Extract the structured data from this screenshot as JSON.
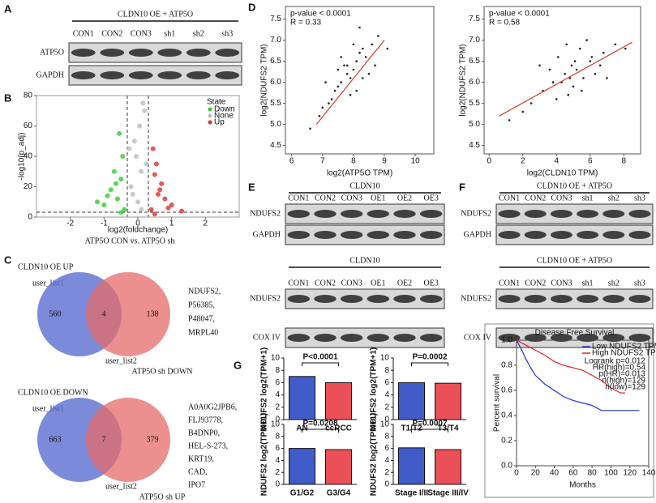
{
  "panel_labels": [
    "A",
    "B",
    "C",
    "D",
    "E",
    "F",
    "G"
  ],
  "blot_a": {
    "title": "CLDN10 OE + ATP5O",
    "lanes": [
      "CON1",
      "CON2",
      "CON3",
      "sh1",
      "sh2",
      "sh3"
    ],
    "rows": [
      "ATP5O",
      "GAPDH"
    ]
  },
  "volcano": {
    "xlabel": "log2(foldchange)",
    "ylabel": "-log10(p_adj)",
    "xlim": [
      -3,
      3
    ],
    "xticks": [
      -2,
      -1,
      0,
      1,
      2
    ],
    "ylim": [
      0,
      80
    ],
    "yticks": [
      0,
      20,
      40,
      60,
      80
    ],
    "legend_title": "State",
    "caption": "ATP5O CON vs. ATP5O sh",
    "series": [
      {
        "name": "Down",
        "color": "#33cc33",
        "x": [
          -0.4,
          -0.6,
          -0.5,
          -0.8,
          -0.45,
          -1.0,
          -0.7,
          -0.55,
          -0.9,
          -0.65,
          -1.2,
          -0.5
        ],
        "y": [
          5,
          12,
          25,
          18,
          40,
          8,
          30,
          55,
          14,
          22,
          10,
          3
        ]
      },
      {
        "name": "None",
        "color": "#bbbbbb",
        "x": [
          0,
          0.1,
          -0.1,
          0.2,
          -0.2,
          0.05,
          -0.05,
          0.15,
          -0.15,
          0.25,
          -0.25,
          0.1
        ],
        "y": [
          10,
          30,
          50,
          70,
          20,
          60,
          40,
          75,
          15,
          35,
          45,
          5
        ]
      },
      {
        "name": "Up",
        "color": "#e03030",
        "x": [
          0.4,
          0.6,
          0.5,
          0.8,
          0.45,
          1.0,
          0.7,
          0.55,
          0.9,
          0.65,
          1.3,
          0.5
        ],
        "y": [
          5,
          15,
          28,
          12,
          45,
          8,
          22,
          35,
          6,
          18,
          4,
          2
        ]
      }
    ]
  },
  "venn": [
    {
      "title": "CLDN10  OE UP",
      "set1": "user_list1",
      "set2": "user_list2",
      "only1": 560,
      "both": 4,
      "only2": 138,
      "set2_name": "ATP5O sh DOWN",
      "genes": [
        "NDUFS2,",
        "P56385,",
        "P48047,",
        "MRPL40"
      ]
    },
    {
      "title": "CLDN10  OE DOWN",
      "set1": "user_list1",
      "set2": "user_list2",
      "only1": 663,
      "both": 7,
      "only2": 379,
      "set2_name": "ATP5O sh UP",
      "genes": [
        "A0A0G2JPB6,",
        "FLJ93778,",
        "B4DNP0,",
        "HEL-S-273,",
        "KRT19,",
        "CAD,",
        "IPO7"
      ]
    }
  ],
  "scatter": [
    {
      "annotation": [
        "p-value < 0.0001",
        "R = 0.33"
      ],
      "xlabel": "log2(ATP5O TPM)",
      "ylabel": "log2(NDUFS2 TPM)",
      "xlim": [
        5.8,
        10.6
      ],
      "xticks": [
        6,
        7,
        8,
        9,
        10
      ],
      "ylim": [
        4.3,
        7.8
      ],
      "yticks": [
        4.5,
        {
          "value": 5,
          "label": "5.0"
        },
        5.5,
        {
          "value": 6,
          "label": "6.0"
        },
        6.5,
        {
          "value": 7,
          "label": "7.0"
        },
        7.5
      ],
      "x": [
        7.8,
        7.5,
        8.1,
        7.9,
        8.3,
        7.2,
        8.6,
        7.6,
        8.0,
        7.4,
        8.4,
        7.7,
        8.2,
        6.9,
        8.8,
        7.3,
        7.9,
        8.5,
        7.1,
        8.0,
        7.6,
        8.3,
        6.6,
        9.1,
        7.8,
        8.1,
        7.5,
        8.7,
        7.0,
        8.2
      ],
      "y": [
        6.2,
        5.9,
        6.5,
        6.1,
        6.8,
        5.5,
        6.9,
        6.0,
        6.3,
        5.8,
        6.6,
        6.4,
        6.7,
        5.2,
        7.1,
        5.6,
        5.7,
        6.2,
        6.0,
        6.9,
        6.6,
        6.1,
        4.9,
        6.8,
        6.4,
        5.8,
        6.3,
        6.4,
        5.4,
        7.3
      ],
      "fit_x": [
        6.8,
        9.0
      ],
      "fit_y": [
        5.0,
        7.0
      ]
    },
    {
      "annotation": [
        "p-value < 0.0001",
        "R = 0.58"
      ],
      "xlabel": "log2(CLDN10 TPM)",
      "ylabel": "log2(NDUFS2 TPM)",
      "xlim": [
        -0.3,
        9
      ],
      "xticks": [
        0,
        2,
        4,
        6,
        8
      ],
      "ylim": [
        4.3,
        7.8
      ],
      "yticks": [
        4.5,
        {
          "value": 5,
          "label": "5.0"
        },
        5.5,
        {
          "value": 6,
          "label": "6.0"
        },
        6.5,
        {
          "value": 7,
          "label": "7.0"
        },
        7.5
      ],
      "x": [
        4.5,
        5.2,
        3.8,
        6.0,
        4.9,
        5.6,
        3.2,
        6.8,
        4.1,
        5.0,
        2.5,
        7.5,
        5.4,
        4.7,
        6.3,
        3.6,
        5.8,
        4.3,
        6.6,
        1.2,
        5.1,
        4.0,
        7.0,
        3.0,
        5.5,
        4.6,
        6.1,
        2.0,
        8.1,
        4.8
      ],
      "y": [
        6.2,
        6.3,
        6.0,
        6.5,
        6.4,
        6.1,
        5.8,
        6.7,
        6.6,
        5.9,
        5.5,
        6.9,
        6.8,
        5.7,
        6.2,
        6.3,
        7.0,
        6.0,
        6.4,
        5.1,
        6.5,
        5.6,
        6.1,
        6.4,
        5.8,
        6.9,
        6.6,
        5.3,
        6.8,
        6.1
      ],
      "fit_x": [
        0.6,
        8.5
      ],
      "fit_y": [
        5.2,
        6.95
      ]
    }
  ],
  "blots_e": [
    {
      "title": "CLDN10",
      "lanes": [
        "CON1",
        "CON2",
        "CON3",
        "OE1",
        "OE2",
        "OE3"
      ],
      "rows": [
        "NDUFS2",
        "GAPDH"
      ]
    },
    {
      "title": "CLDN10",
      "lanes": [
        "CON1",
        "CON2",
        "CON3",
        "OE1",
        "OE2",
        "OE3"
      ],
      "rows": [
        "NDUFS2",
        "COX IV"
      ]
    }
  ],
  "blots_f": [
    {
      "title": "CLDN10 OE + ATP5O",
      "lanes": [
        "CON1",
        "CON2",
        "CON3",
        "sh1",
        "sh2",
        "sh3"
      ],
      "rows": [
        "NDUFS2",
        "GAPDH"
      ]
    },
    {
      "title": "CLDN10 OE + ATP5O",
      "lanes": [
        "CON1",
        "CON2",
        "CON3",
        "sh1",
        "sh2",
        "sh3"
      ],
      "rows": [
        "NDUFS2",
        "COX IV"
      ]
    }
  ],
  "bars": [
    {
      "ylabel": "NDUFS2 log2(TPM+1)",
      "p_label": "P<0.0001",
      "categories": [
        "AN",
        "ccRCC"
      ],
      "values": [
        7.0,
        6.0
      ],
      "colors": [
        "#1f3fbf",
        "#e8303a"
      ],
      "ylim": [
        0,
        10
      ],
      "yticks": [
        0,
        2,
        4,
        6,
        8,
        10
      ]
    },
    {
      "ylabel": "NDUFS2 log2(TPM+1)",
      "p_label": "P=0.0002",
      "categories": [
        "T1/T2",
        "T3/T4"
      ],
      "values": [
        6.0,
        5.9
      ],
      "colors": [
        "#1f3fbf",
        "#e8303a"
      ],
      "ylim": [
        0,
        10
      ],
      "yticks": [
        0,
        2,
        4,
        6,
        8,
        10
      ]
    },
    {
      "ylabel": "NDUFS2 log2(TPM+1)",
      "p_label": "P=0.0208",
      "categories": [
        "G1/G2",
        "G3/G4"
      ],
      "values": [
        6.0,
        5.8
      ],
      "colors": [
        "#1f3fbf",
        "#e8303a"
      ],
      "ylim": [
        0,
        10
      ],
      "yticks": [
        0,
        2,
        4,
        6,
        8,
        10
      ]
    },
    {
      "ylabel": "NDUFS2 log2(TPM+1)",
      "p_label": "P=0.0007",
      "categories": [
        "Stage I/II",
        "Stage III/IV"
      ],
      "values": [
        6.1,
        5.8
      ],
      "colors": [
        "#1f3fbf",
        "#e8303a"
      ],
      "ylim": [
        0,
        10
      ],
      "yticks": [
        0,
        2,
        4,
        6,
        8,
        10
      ]
    }
  ],
  "survival": {
    "title": "Disease Free Survival",
    "xlabel": "Months",
    "ylabel": "Percent survival",
    "xlim": [
      0,
      140
    ],
    "xticks": [
      0,
      20,
      40,
      60,
      80,
      100,
      120,
      140
    ],
    "ylim": [
      0,
      1
    ],
    "yticks": [
      {
        "value": 0,
        "label": "0.0"
      },
      0.2,
      0.4,
      0.6,
      0.8,
      {
        "value": 1,
        "label": "1.0"
      }
    ],
    "series": [
      {
        "name": "Low NDUFS2 TPM",
        "color": "#2030d0",
        "x": [
          0,
          5,
          10,
          15,
          20,
          30,
          40,
          50,
          60,
          70,
          80,
          90,
          100,
          130
        ],
        "y": [
          1,
          0.93,
          0.85,
          0.78,
          0.72,
          0.65,
          0.6,
          0.55,
          0.52,
          0.5,
          0.48,
          0.44,
          0.44,
          0.44
        ]
      },
      {
        "name": "High NDUFS2 TPM",
        "color": "#e02020",
        "x": [
          0,
          10,
          20,
          30,
          40,
          50,
          60,
          70,
          80,
          90,
          100,
          110,
          115
        ],
        "y": [
          1,
          0.96,
          0.92,
          0.88,
          0.83,
          0.8,
          0.78,
          0.76,
          0.72,
          0.68,
          0.62,
          0.58,
          0.58
        ]
      }
    ],
    "stats": [
      "Logrank p=0.012",
      "HR(high)=0.54",
      "p(HR)=0.013",
      "n(high)=129",
      "n(low)=129"
    ]
  }
}
